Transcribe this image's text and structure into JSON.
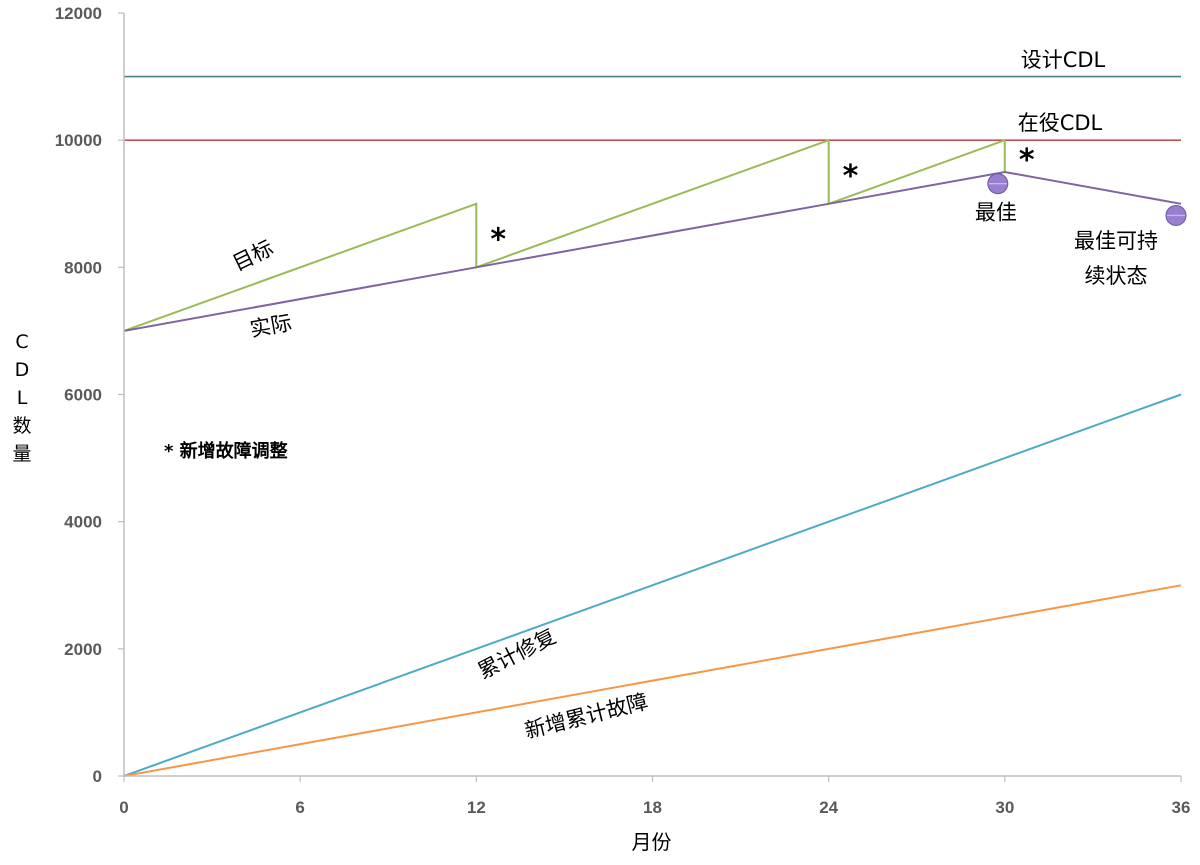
{
  "chart_data": {
    "type": "line",
    "xlabel": "月份",
    "ylabel_chars": [
      "C",
      "D",
      "L",
      "数",
      "量"
    ],
    "xlim": [
      0,
      36
    ],
    "ylim": [
      0,
      12000
    ],
    "x_ticks": [
      "0",
      "6",
      "12",
      "18",
      "24",
      "30",
      "36"
    ],
    "y_ticks": [
      "0",
      "2000",
      "4000",
      "6000",
      "8000",
      "10000",
      "12000"
    ],
    "grid": false,
    "colors": {
      "design_cdl": "#4a7f8f",
      "service_cdl": "#c0504d",
      "target": "#9bbb59",
      "actual": "#8064a2",
      "repair": "#4bacc6",
      "fault": "#f79646",
      "marker": "#9a7ed0",
      "axis": "#bfbfbf"
    },
    "reference_lines": [
      {
        "name": "设计CDL",
        "y": 11000
      },
      {
        "name": "在役CDL",
        "y": 10000
      }
    ],
    "series": [
      {
        "name": "目标",
        "points": [
          [
            0,
            7000
          ],
          [
            12,
            9000
          ],
          [
            12,
            8000
          ],
          [
            24,
            10000
          ],
          [
            24,
            9000
          ],
          [
            30,
            10000
          ],
          [
            30,
            9500
          ]
        ]
      },
      {
        "name": "实际",
        "points": [
          [
            0,
            7000
          ],
          [
            12,
            8000
          ],
          [
            24,
            9000
          ],
          [
            30,
            9500
          ],
          [
            36,
            9000
          ]
        ]
      },
      {
        "name": "累计修复",
        "points": [
          [
            0,
            0
          ],
          [
            36,
            6000
          ]
        ]
      },
      {
        "name": "新增累计故障",
        "points": [
          [
            0,
            0
          ],
          [
            36,
            3000
          ]
        ]
      }
    ],
    "markers": [
      {
        "label": "最佳",
        "x": 30,
        "y": 9300
      },
      {
        "label_lines": [
          "最佳可持",
          "续状态"
        ],
        "x": 36,
        "y": 8800
      }
    ],
    "adjust_marks": [
      {
        "label": "*",
        "x": 12,
        "y": 8500
      },
      {
        "label": "*",
        "x": 24,
        "y": 9500
      },
      {
        "label": "*",
        "x": 30,
        "y": 9750
      }
    ],
    "annotation": "* 新增故障调整"
  }
}
